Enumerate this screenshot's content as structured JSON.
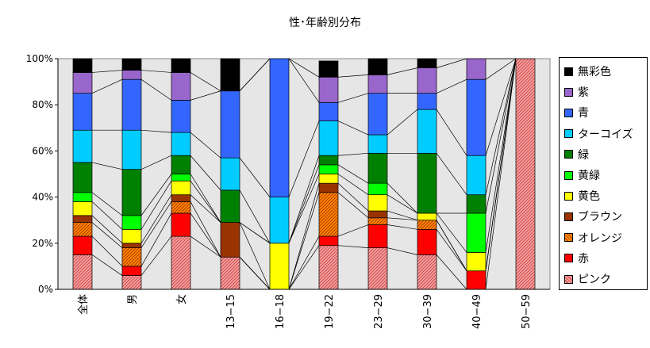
{
  "chart_data": {
    "type": "bar",
    "stacked": "percent",
    "title": "性･年齢別分布",
    "xlabel": "",
    "ylabel": "",
    "ylim": [
      0,
      100
    ],
    "yticks": [
      "0%",
      "20%",
      "40%",
      "60%",
      "80%",
      "100%"
    ],
    "grid": false,
    "legend_position": "right",
    "categories": [
      "全体",
      "男",
      "女",
      "13−15",
      "16−18",
      "19−22",
      "23−29",
      "30−39",
      "40−49",
      "50−59"
    ],
    "series": [
      {
        "name": "ピンク",
        "color": "#F08080",
        "pattern": "hatch-pink",
        "values": [
          15,
          6,
          23,
          14,
          0,
          19,
          18,
          15,
          0,
          100
        ]
      },
      {
        "name": "赤",
        "color": "#FF0000",
        "values": [
          8,
          4,
          10,
          0,
          0,
          4,
          10,
          11,
          8,
          0
        ]
      },
      {
        "name": "オレンジ",
        "color": "#E06010",
        "pattern": "hatch-orange",
        "values": [
          6,
          8,
          5,
          0,
          0,
          19,
          3,
          4,
          0,
          0
        ]
      },
      {
        "name": "ブラウン",
        "color": "#993300",
        "values": [
          3,
          2,
          3,
          15,
          0,
          4,
          3,
          0,
          0,
          0
        ]
      },
      {
        "name": "黄色",
        "color": "#FFFF00",
        "values": [
          6,
          6,
          6,
          0,
          20,
          4,
          7,
          3,
          8,
          0
        ]
      },
      {
        "name": "黄緑",
        "color": "#00FF00",
        "values": [
          4,
          6,
          3,
          0,
          0,
          4,
          5,
          0,
          17,
          0
        ]
      },
      {
        "name": "緑",
        "color": "#008000",
        "values": [
          13,
          20,
          8,
          14,
          0,
          4,
          13,
          26,
          8,
          0
        ]
      },
      {
        "name": "ターコイズ",
        "color": "#00CCFF",
        "values": [
          14,
          17,
          10,
          14,
          20,
          15,
          8,
          19,
          17,
          0
        ]
      },
      {
        "name": "青",
        "color": "#3366FF",
        "values": [
          16,
          22,
          14,
          29,
          60,
          8,
          18,
          7,
          33,
          0
        ]
      },
      {
        "name": "紫",
        "color": "#9966CC",
        "values": [
          9,
          4,
          12,
          0,
          0,
          11,
          8,
          11,
          9,
          0
        ]
      },
      {
        "name": "無彩色",
        "color": "#000000",
        "values": [
          6,
          5,
          6,
          14,
          0,
          7,
          7,
          4,
          0,
          0
        ]
      }
    ]
  }
}
